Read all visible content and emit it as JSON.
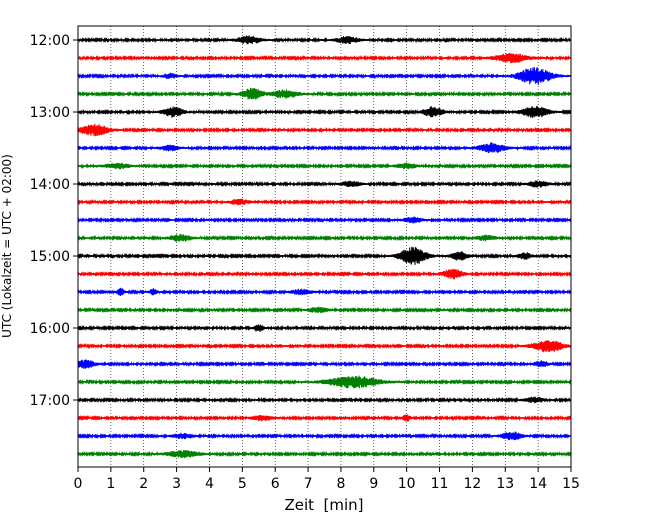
{
  "chart_data": {
    "type": "line",
    "title": "",
    "xlabel": "Zeit  [min]",
    "ylabel": "UTC (Lokalzeit = UTC + 02:00)",
    "xlim": [
      0,
      15
    ],
    "x_ticks": [
      "0",
      "1",
      "2",
      "3",
      "4",
      "5",
      "6",
      "7",
      "8",
      "9",
      "10",
      "11",
      "12",
      "13",
      "14",
      "15"
    ],
    "y_ticks": [
      "12:00",
      "13:00",
      "14:00",
      "15:00",
      "16:00",
      "17:00"
    ],
    "vertical_grid": true,
    "trace_colors": [
      "#000000",
      "#ff0000",
      "#0000ff",
      "#008000"
    ],
    "row_interval_min": 15,
    "rows": [
      {
        "time": "12:00",
        "events": [
          [
            5.2,
            0.35,
            1.2
          ],
          [
            8.2,
            0.35,
            1.1
          ]
        ]
      },
      {
        "time": "12:15",
        "events": [
          [
            13.2,
            0.5,
            1.4
          ]
        ]
      },
      {
        "time": "12:30",
        "events": [
          [
            13.9,
            0.5,
            2.6
          ],
          [
            2.8,
            0.2,
            0.8
          ]
        ]
      },
      {
        "time": "12:45",
        "events": [
          [
            5.3,
            0.3,
            1.8
          ],
          [
            6.3,
            0.4,
            1.2
          ]
        ]
      },
      {
        "time": "13:00",
        "events": [
          [
            2.9,
            0.3,
            1.5
          ],
          [
            10.8,
            0.3,
            1.6
          ],
          [
            13.9,
            0.4,
            1.8
          ]
        ]
      },
      {
        "time": "13:15",
        "events": [
          [
            0.5,
            0.45,
            1.7
          ]
        ]
      },
      {
        "time": "13:30",
        "events": [
          [
            12.6,
            0.4,
            1.5
          ],
          [
            2.8,
            0.3,
            0.8
          ]
        ]
      },
      {
        "time": "13:45",
        "events": [
          [
            1.2,
            0.4,
            0.8
          ],
          [
            10.0,
            0.3,
            0.8
          ]
        ]
      },
      {
        "time": "14:00",
        "events": [
          [
            8.3,
            0.3,
            0.8
          ],
          [
            14.0,
            0.3,
            0.9
          ]
        ]
      },
      {
        "time": "14:15",
        "events": [
          [
            4.9,
            0.3,
            0.8
          ]
        ]
      },
      {
        "time": "14:30",
        "events": [
          [
            10.2,
            0.3,
            0.8
          ]
        ]
      },
      {
        "time": "14:45",
        "events": [
          [
            3.1,
            0.35,
            1.0
          ],
          [
            12.4,
            0.3,
            0.8
          ]
        ]
      },
      {
        "time": "15:00",
        "events": [
          [
            10.2,
            0.4,
            2.7
          ],
          [
            11.6,
            0.25,
            1.3
          ],
          [
            13.6,
            0.2,
            1.0
          ]
        ]
      },
      {
        "time": "15:15",
        "events": [
          [
            11.4,
            0.3,
            1.5
          ]
        ]
      },
      {
        "time": "15:30",
        "events": [
          [
            1.3,
            0.1,
            1.2
          ],
          [
            2.3,
            0.1,
            1.1
          ],
          [
            6.8,
            0.3,
            0.8
          ]
        ]
      },
      {
        "time": "15:45",
        "events": [
          [
            7.3,
            0.3,
            0.8
          ]
        ]
      },
      {
        "time": "16:00",
        "events": [
          [
            5.5,
            0.15,
            1.1
          ]
        ]
      },
      {
        "time": "16:15",
        "events": [
          [
            14.3,
            0.45,
            1.9
          ]
        ]
      },
      {
        "time": "16:30",
        "events": [
          [
            0.2,
            0.3,
            1.3
          ],
          [
            14.1,
            0.2,
            1.0
          ]
        ]
      },
      {
        "time": "16:45",
        "events": [
          [
            8.4,
            0.8,
            1.8
          ]
        ]
      },
      {
        "time": "17:00",
        "events": [
          [
            13.9,
            0.3,
            0.8
          ]
        ]
      },
      {
        "time": "17:15",
        "events": [
          [
            10.0,
            0.1,
            1.3
          ],
          [
            5.6,
            0.3,
            0.8
          ]
        ]
      },
      {
        "time": "17:30",
        "events": [
          [
            13.2,
            0.3,
            1.3
          ],
          [
            3.2,
            0.3,
            0.8
          ]
        ]
      },
      {
        "time": "17:45",
        "events": [
          [
            3.2,
            0.5,
            1.0
          ]
        ]
      }
    ]
  }
}
